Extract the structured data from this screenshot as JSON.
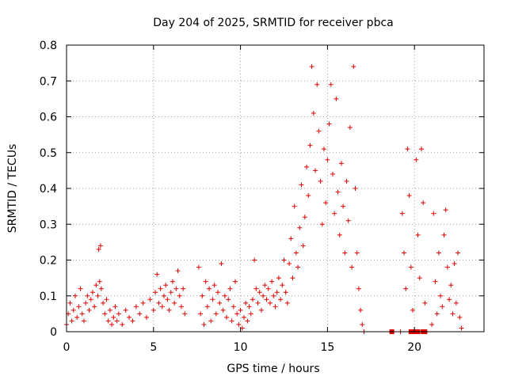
{
  "chart_data": {
    "type": "scatter",
    "title": "Day 204 of 2025, SRMTID for receiver pbca",
    "xlabel": "GPS time / hours",
    "ylabel": "SRMTID / TECUs",
    "xlim": [
      0,
      24
    ],
    "ylim": [
      0,
      0.8
    ],
    "x_ticks": [
      0,
      5,
      10,
      15,
      20
    ],
    "y_ticks": [
      0,
      0.1,
      0.2,
      0.3,
      0.4,
      0.5,
      0.6,
      0.7,
      0.8
    ],
    "x_tick_labels": [
      "0",
      "5",
      "10",
      "15",
      "20"
    ],
    "y_tick_labels": [
      "0",
      "0.1",
      "0.2",
      "0.3",
      "0.4",
      "0.5",
      "0.6",
      "0.7",
      "0.8"
    ],
    "grid": true,
    "marker": "plus",
    "marker_color": "#e00000",
    "series": [
      {
        "name": "SRMTID",
        "points": [
          [
            0.0,
            0.02
          ],
          [
            0.1,
            0.05
          ],
          [
            0.2,
            0.08
          ],
          [
            0.3,
            0.03
          ],
          [
            0.4,
            0.06
          ],
          [
            0.5,
            0.1
          ],
          [
            0.6,
            0.04
          ],
          [
            0.7,
            0.07
          ],
          [
            0.8,
            0.12
          ],
          [
            0.9,
            0.05
          ],
          [
            1.0,
            0.03
          ],
          [
            1.1,
            0.08
          ],
          [
            1.2,
            0.1
          ],
          [
            1.3,
            0.06
          ],
          [
            1.4,
            0.09
          ],
          [
            1.5,
            0.11
          ],
          [
            1.6,
            0.07
          ],
          [
            1.7,
            0.13
          ],
          [
            1.8,
            0.1
          ],
          [
            1.9,
            0.14
          ],
          [
            1.85,
            0.23
          ],
          [
            1.95,
            0.24
          ],
          [
            2.0,
            0.12
          ],
          [
            2.1,
            0.08
          ],
          [
            2.2,
            0.05
          ],
          [
            2.3,
            0.09
          ],
          [
            2.4,
            0.03
          ],
          [
            2.5,
            0.06
          ],
          [
            2.6,
            0.02
          ],
          [
            2.7,
            0.04
          ],
          [
            2.8,
            0.07
          ],
          [
            2.9,
            0.03
          ],
          [
            3.0,
            0.05
          ],
          [
            3.2,
            0.02
          ],
          [
            3.4,
            0.06
          ],
          [
            3.6,
            0.04
          ],
          [
            3.8,
            0.03
          ],
          [
            4.0,
            0.07
          ],
          [
            4.2,
            0.05
          ],
          [
            4.4,
            0.08
          ],
          [
            4.6,
            0.04
          ],
          [
            4.8,
            0.09
          ],
          [
            5.0,
            0.06
          ],
          [
            5.1,
            0.11
          ],
          [
            5.2,
            0.16
          ],
          [
            5.3,
            0.08
          ],
          [
            5.4,
            0.12
          ],
          [
            5.5,
            0.07
          ],
          [
            5.6,
            0.1
          ],
          [
            5.7,
            0.13
          ],
          [
            5.8,
            0.09
          ],
          [
            5.9,
            0.06
          ],
          [
            6.0,
            0.11
          ],
          [
            6.1,
            0.14
          ],
          [
            6.2,
            0.08
          ],
          [
            6.3,
            0.12
          ],
          [
            6.4,
            0.17
          ],
          [
            6.5,
            0.1
          ],
          [
            6.6,
            0.07
          ],
          [
            6.7,
            0.12
          ],
          [
            6.8,
            0.05
          ],
          [
            7.6,
            0.18
          ],
          [
            7.7,
            0.05
          ],
          [
            7.8,
            0.1
          ],
          [
            7.9,
            0.02
          ],
          [
            8.0,
            0.14
          ],
          [
            8.1,
            0.07
          ],
          [
            8.2,
            0.12
          ],
          [
            8.3,
            0.03
          ],
          [
            8.4,
            0.09
          ],
          [
            8.5,
            0.13
          ],
          [
            8.6,
            0.05
          ],
          [
            8.7,
            0.11
          ],
          [
            8.8,
            0.08
          ],
          [
            8.9,
            0.19
          ],
          [
            9.0,
            0.06
          ],
          [
            9.1,
            0.1
          ],
          [
            9.2,
            0.04
          ],
          [
            9.3,
            0.09
          ],
          [
            9.4,
            0.12
          ],
          [
            9.5,
            0.03
          ],
          [
            9.6,
            0.07
          ],
          [
            9.7,
            0.14
          ],
          [
            9.8,
            0.05
          ],
          [
            9.9,
            0.02
          ],
          [
            10.0,
            0.06
          ],
          [
            10.1,
            0.01
          ],
          [
            10.2,
            0.04
          ],
          [
            10.3,
            0.08
          ],
          [
            10.4,
            0.03
          ],
          [
            10.5,
            0.07
          ],
          [
            10.6,
            0.05
          ],
          [
            10.7,
            0.09
          ],
          [
            10.8,
            0.2
          ],
          [
            10.9,
            0.12
          ],
          [
            11.0,
            0.08
          ],
          [
            11.1,
            0.11
          ],
          [
            11.2,
            0.06
          ],
          [
            11.3,
            0.1
          ],
          [
            11.4,
            0.13
          ],
          [
            11.5,
            0.09
          ],
          [
            11.6,
            0.12
          ],
          [
            11.7,
            0.08
          ],
          [
            11.8,
            0.14
          ],
          [
            11.9,
            0.1
          ],
          [
            12.0,
            0.07
          ],
          [
            12.1,
            0.11
          ],
          [
            12.2,
            0.15
          ],
          [
            12.3,
            0.09
          ],
          [
            12.4,
            0.13
          ],
          [
            12.5,
            0.2
          ],
          [
            12.6,
            0.11
          ],
          [
            12.7,
            0.08
          ],
          [
            12.8,
            0.19
          ],
          [
            12.9,
            0.26
          ],
          [
            13.0,
            0.15
          ],
          [
            13.1,
            0.35
          ],
          [
            13.2,
            0.22
          ],
          [
            13.3,
            0.18
          ],
          [
            13.4,
            0.29
          ],
          [
            13.5,
            0.41
          ],
          [
            13.6,
            0.24
          ],
          [
            13.7,
            0.32
          ],
          [
            13.8,
            0.46
          ],
          [
            13.9,
            0.38
          ],
          [
            14.0,
            0.52
          ],
          [
            14.1,
            0.74
          ],
          [
            14.2,
            0.61
          ],
          [
            14.3,
            0.45
          ],
          [
            14.4,
            0.69
          ],
          [
            14.5,
            0.56
          ],
          [
            14.6,
            0.42
          ],
          [
            14.7,
            0.3
          ],
          [
            14.8,
            0.51
          ],
          [
            14.9,
            0.36
          ],
          [
            15.0,
            0.48
          ],
          [
            15.1,
            0.58
          ],
          [
            15.2,
            0.69
          ],
          [
            15.3,
            0.44
          ],
          [
            15.4,
            0.33
          ],
          [
            15.5,
            0.65
          ],
          [
            15.6,
            0.39
          ],
          [
            15.7,
            0.27
          ],
          [
            15.8,
            0.47
          ],
          [
            15.9,
            0.35
          ],
          [
            16.0,
            0.22
          ],
          [
            16.1,
            0.42
          ],
          [
            16.2,
            0.31
          ],
          [
            16.3,
            0.57
          ],
          [
            16.4,
            0.18
          ],
          [
            16.5,
            0.74
          ],
          [
            16.6,
            0.4
          ],
          [
            16.7,
            0.22
          ],
          [
            16.8,
            0.12
          ],
          [
            16.9,
            0.06
          ],
          [
            17.0,
            0.02
          ],
          [
            17.1,
            0.0
          ],
          [
            18.8,
            0.0
          ],
          [
            19.2,
            0.0
          ],
          [
            19.3,
            0.33
          ],
          [
            19.4,
            0.22
          ],
          [
            19.5,
            0.12
          ],
          [
            19.6,
            0.51
          ],
          [
            19.7,
            0.38
          ],
          [
            19.8,
            0.18
          ],
          [
            19.9,
            0.06
          ],
          [
            20.1,
            0.48
          ],
          [
            20.2,
            0.27
          ],
          [
            20.3,
            0.15
          ],
          [
            20.4,
            0.51
          ],
          [
            20.5,
            0.36
          ],
          [
            20.6,
            0.08
          ],
          [
            21.0,
            0.02
          ],
          [
            21.1,
            0.33
          ],
          [
            21.2,
            0.14
          ],
          [
            21.3,
            0.05
          ],
          [
            21.4,
            0.22
          ],
          [
            21.5,
            0.1
          ],
          [
            21.6,
            0.07
          ],
          [
            21.7,
            0.27
          ],
          [
            21.8,
            0.34
          ],
          [
            21.9,
            0.18
          ],
          [
            22.0,
            0.09
          ],
          [
            22.1,
            0.13
          ],
          [
            22.2,
            0.05
          ],
          [
            22.3,
            0.19
          ],
          [
            22.4,
            0.08
          ],
          [
            22.5,
            0.22
          ],
          [
            22.6,
            0.04
          ],
          [
            22.7,
            0.01
          ]
        ]
      },
      {
        "name": "zero-markers",
        "marker": "square",
        "points": [
          [
            18.7,
            0.0
          ],
          [
            19.8,
            0.0
          ],
          [
            20.0,
            0.0
          ],
          [
            20.2,
            0.0
          ],
          [
            20.5,
            0.0
          ],
          [
            20.6,
            0.0
          ]
        ]
      }
    ]
  }
}
